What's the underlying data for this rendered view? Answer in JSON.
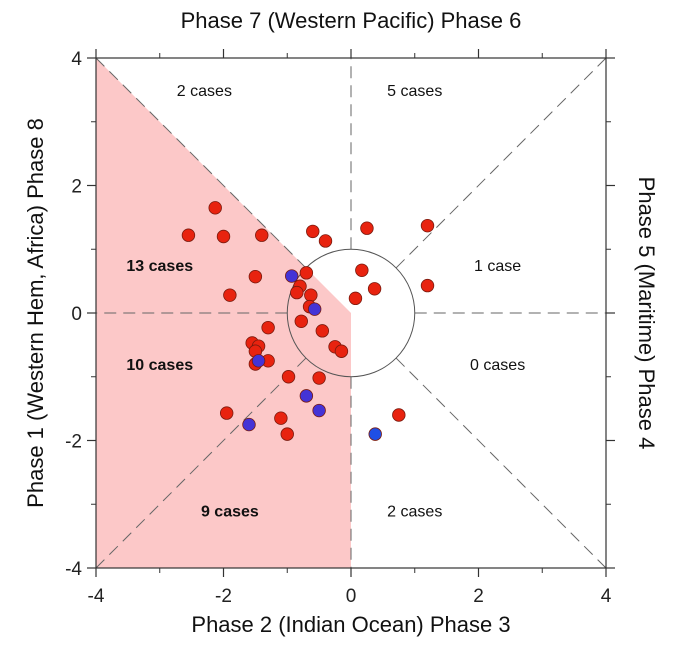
{
  "chart_data": {
    "type": "scatter",
    "title": "Phase 7 (Western Pacific) Phase 6",
    "xlabel": "Phase 2 (Indian Ocean) Phase 3",
    "ylabel_left": "Phase 1 (Western Hem, Africa) Phase 8",
    "ylabel_right": "Phase 5 (Maritime) Phase 4",
    "xlim": [
      -4,
      4
    ],
    "ylim": [
      -4,
      4
    ],
    "x_ticks": [
      "-4",
      "-2",
      "0",
      "2",
      "4"
    ],
    "y_ticks": [
      "4",
      "2",
      "0",
      "-2",
      "-4"
    ],
    "unit_circle_radius": 1,
    "shaded_region_color": "#fcc8c8",
    "octant_labels": [
      {
        "text": "2 cases",
        "bold": false
      },
      {
        "text": "5 cases",
        "bold": false
      },
      {
        "text": "13 cases",
        "bold": true
      },
      {
        "text": "1 case",
        "bold": false
      },
      {
        "text": "10 cases",
        "bold": true
      },
      {
        "text": "0 cases",
        "bold": false
      },
      {
        "text": "9 cases",
        "bold": true
      },
      {
        "text": "2 cases",
        "bold": false
      }
    ],
    "series": [
      {
        "color": "#e8230f",
        "points": [
          [
            -2.13,
            1.65
          ],
          [
            -2.55,
            1.22
          ],
          [
            -2.0,
            1.2
          ],
          [
            -1.4,
            1.22
          ],
          [
            -0.6,
            1.28
          ],
          [
            -0.4,
            1.13
          ],
          [
            -1.5,
            0.57
          ],
          [
            -1.9,
            0.28
          ],
          [
            -0.7,
            0.63
          ],
          [
            -0.8,
            0.42
          ],
          [
            -0.85,
            0.32
          ],
          [
            -0.63,
            0.28
          ],
          [
            -0.65,
            0.1
          ],
          [
            -0.78,
            -0.13
          ],
          [
            -1.3,
            -0.23
          ],
          [
            -0.45,
            -0.28
          ],
          [
            -1.55,
            -0.47
          ],
          [
            -1.45,
            -0.52
          ],
          [
            -1.5,
            -0.6
          ],
          [
            -1.3,
            -0.75
          ],
          [
            -1.5,
            -0.8
          ],
          [
            -0.25,
            -0.53
          ],
          [
            -0.15,
            -0.6
          ],
          [
            -0.5,
            -1.02
          ],
          [
            -0.98,
            -1.0
          ],
          [
            -1.95,
            -1.57
          ],
          [
            -1.1,
            -1.65
          ],
          [
            -1.0,
            -1.9
          ],
          [
            0.25,
            1.33
          ],
          [
            1.2,
            1.37
          ],
          [
            0.17,
            0.67
          ],
          [
            0.37,
            0.38
          ],
          [
            0.07,
            0.23
          ],
          [
            1.2,
            0.43
          ],
          [
            0.75,
            -1.6
          ]
        ]
      },
      {
        "color": "#4433d6",
        "points": [
          [
            -0.93,
            0.58
          ],
          [
            -0.57,
            0.06
          ],
          [
            -1.45,
            -0.75
          ],
          [
            -0.7,
            -1.3
          ],
          [
            -0.5,
            -1.53
          ],
          [
            -1.6,
            -1.75
          ]
        ]
      },
      {
        "color": "#1f4fe6",
        "points": [
          [
            0.38,
            -1.9
          ]
        ]
      }
    ],
    "grid": false
  }
}
